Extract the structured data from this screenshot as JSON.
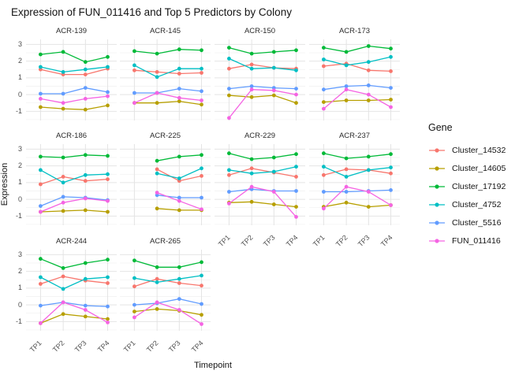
{
  "title": "Expression of FUN_011416 and Top 5 Predictors by Colony",
  "axes": {
    "x_label": "Timepoint",
    "y_label": "Expression",
    "x_ticks": [
      "TP1",
      "TP2",
      "TP3",
      "TP4"
    ],
    "y_ticks": [
      3,
      2,
      1,
      0,
      -1
    ]
  },
  "legend": {
    "title": "Gene",
    "position": "right"
  },
  "chart_data": {
    "type": "line",
    "title": "Expression of FUN_011416 and Top 5 Predictors by Colony",
    "xlabel": "Timepoint",
    "ylabel": "Expression",
    "x": [
      "TP1",
      "TP2",
      "TP3",
      "TP4"
    ],
    "ylim": [
      -1.55,
      3.3
    ],
    "y_major_gridlines": [
      -1,
      0,
      1,
      2,
      3
    ],
    "y_minor_gridlines": [
      -1.5,
      -0.5,
      0.5,
      1.5,
      2.5
    ],
    "grid": true,
    "legend_position": "right",
    "facet_columns": 4,
    "series": [
      {
        "name": "Cluster_14532",
        "color": "#F8766D"
      },
      {
        "name": "Cluster_14605",
        "color": "#B79F00"
      },
      {
        "name": "Cluster_17192",
        "color": "#00BA38"
      },
      {
        "name": "Cluster_4752",
        "color": "#00BFC4"
      },
      {
        "name": "Cluster_5516",
        "color": "#619CFF"
      },
      {
        "name": "FUN_011416",
        "color": "#F564E3"
      }
    ],
    "facets": [
      {
        "name": "ACR-139",
        "values": [
          [
            1.5,
            1.2,
            1.2,
            1.55
          ],
          [
            -0.75,
            -0.85,
            -0.9,
            -0.65
          ],
          [
            2.4,
            2.55,
            1.95,
            2.25
          ],
          [
            1.65,
            1.35,
            1.5,
            1.65
          ],
          [
            0.05,
            0.05,
            0.4,
            0.15
          ],
          [
            -0.25,
            -0.5,
            -0.25,
            -0.1
          ]
        ]
      },
      {
        "name": "ACR-145",
        "values": [
          [
            1.45,
            1.35,
            1.25,
            1.3
          ],
          [
            -0.5,
            -0.5,
            -0.4,
            -0.6
          ],
          [
            2.6,
            2.45,
            2.7,
            2.65
          ],
          [
            1.75,
            1.05,
            1.55,
            1.55
          ],
          [
            0.1,
            0.1,
            0.35,
            0.2
          ],
          [
            -0.5,
            0.1,
            -0.2,
            -0.35
          ]
        ]
      },
      {
        "name": "ACR-150",
        "values": [
          [
            1.55,
            1.8,
            1.6,
            1.55
          ],
          [
            -0.05,
            -0.15,
            -0.05,
            -0.5
          ],
          [
            2.8,
            2.45,
            2.55,
            2.65
          ],
          [
            2.15,
            1.55,
            1.6,
            1.45
          ],
          [
            0.35,
            0.5,
            0.4,
            0.35
          ],
          [
            -1.4,
            0.3,
            0.25,
            0.0
          ]
        ]
      },
      {
        "name": "ACR-173",
        "values": [
          [
            1.7,
            1.85,
            1.45,
            1.4
          ],
          [
            -0.45,
            -0.35,
            -0.35,
            -0.3
          ],
          [
            2.8,
            2.55,
            2.9,
            2.75
          ],
          [
            2.1,
            1.75,
            1.95,
            2.25
          ],
          [
            0.3,
            0.5,
            0.55,
            0.4
          ],
          [
            -0.85,
            0.3,
            0.0,
            -0.75
          ]
        ]
      },
      {
        "name": "ACR-186",
        "values": [
          [
            0.9,
            1.35,
            1.1,
            1.2
          ],
          [
            -0.75,
            -0.7,
            -0.65,
            -0.75
          ],
          [
            2.55,
            2.5,
            2.65,
            2.6
          ],
          [
            1.75,
            1.0,
            1.45,
            1.5
          ],
          [
            -0.4,
            0.15,
            0.1,
            -0.05
          ],
          [
            -0.75,
            -0.2,
            0.05,
            -0.1
          ]
        ]
      },
      {
        "name": "ACR-225",
        "values": [
          [
            null,
            1.8,
            1.1,
            1.4
          ],
          [
            null,
            -0.55,
            -0.65,
            -0.65
          ],
          [
            null,
            2.3,
            2.55,
            2.65
          ],
          [
            null,
            1.55,
            1.25,
            1.85
          ],
          [
            null,
            0.25,
            0.1,
            0.1
          ],
          [
            null,
            0.4,
            -0.1,
            -0.6
          ]
        ]
      },
      {
        "name": "ACR-229",
        "values": [
          [
            1.45,
            1.85,
            1.6,
            1.35
          ],
          [
            -0.2,
            -0.15,
            -0.3,
            -0.45
          ],
          [
            2.75,
            2.4,
            2.5,
            2.7
          ],
          [
            1.75,
            1.55,
            1.65,
            1.95
          ],
          [
            0.45,
            0.6,
            0.5,
            0.5
          ],
          [
            -0.25,
            0.75,
            0.45,
            -1.05
          ]
        ]
      },
      {
        "name": "ACR-237",
        "values": [
          [
            1.45,
            1.8,
            1.75,
            1.55
          ],
          [
            -0.45,
            -0.2,
            -0.45,
            -0.35
          ],
          [
            2.75,
            2.45,
            2.55,
            2.7
          ],
          [
            1.95,
            1.35,
            1.75,
            1.9
          ],
          [
            0.45,
            0.45,
            0.5,
            0.55
          ],
          [
            -0.55,
            0.75,
            0.45,
            -0.35
          ]
        ]
      },
      {
        "name": "ACR-244",
        "values": [
          [
            1.25,
            1.7,
            1.45,
            1.3
          ],
          [
            -1.1,
            -0.55,
            -0.7,
            -0.85
          ],
          [
            2.75,
            2.2,
            2.5,
            2.7
          ],
          [
            1.65,
            0.95,
            1.55,
            1.65
          ],
          [
            -0.05,
            0.15,
            -0.05,
            -0.1
          ],
          [
            -1.1,
            0.15,
            -0.3,
            -1.05
          ]
        ]
      },
      {
        "name": "ACR-265",
        "values": [
          [
            1.1,
            1.55,
            1.3,
            1.15
          ],
          [
            -0.4,
            -0.25,
            -0.35,
            -0.6
          ],
          [
            2.65,
            2.25,
            2.25,
            2.55
          ],
          [
            1.6,
            1.35,
            1.55,
            1.75
          ],
          [
            0.0,
            0.1,
            0.35,
            0.05
          ],
          [
            -0.75,
            0.15,
            -0.3,
            -1.15
          ]
        ]
      }
    ],
    "style": {
      "major_grid_color": "#e4e4e4",
      "minor_grid_color": "#f1f1f1",
      "tick_label_color": "#4d4d4d",
      "strip_label_color": "#2b2b2b"
    }
  }
}
